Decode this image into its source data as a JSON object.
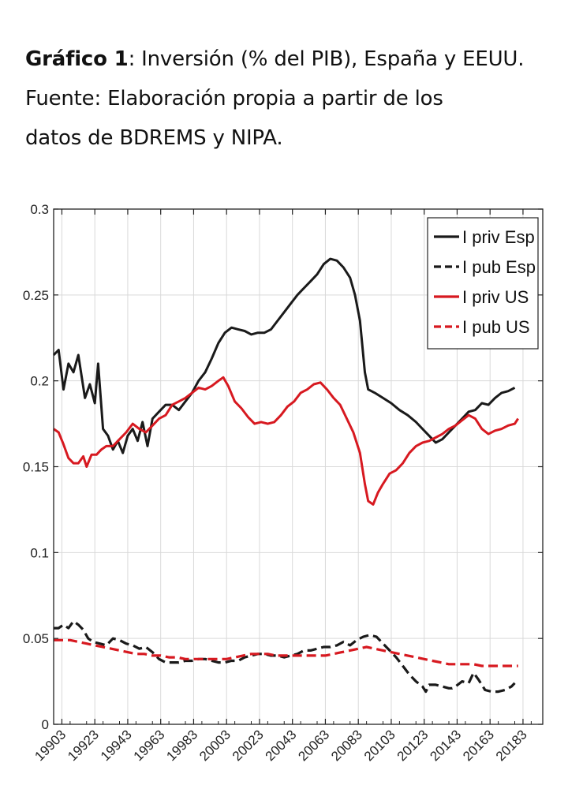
{
  "caption": {
    "label": "Gráfico 1",
    "line1_rest": ": Inversión (% del PIB), España y EEUU.",
    "line2": "Fuente: Elaboración propia a partir de los",
    "line3": "datos de BDREMS y NIPA."
  },
  "chart_data": {
    "type": "line",
    "ylim": [
      0,
      0.3
    ],
    "yticks": [
      "0",
      "0.05",
      "0.1",
      "0.15",
      "0.2",
      "0.25",
      "0.3"
    ],
    "x_tick_labels": [
      "19903",
      "19923",
      "19943",
      "19963",
      "19983",
      "20003",
      "20023",
      "20043",
      "20063",
      "20083",
      "20103",
      "20123",
      "20143",
      "20163",
      "20183"
    ],
    "x_tick_years": [
      1990.5,
      1992.5,
      1994.5,
      1996.5,
      1998.5,
      2000.5,
      2002.5,
      2004.5,
      2006.5,
      2008.5,
      2010.5,
      2012.5,
      2014.5,
      2016.5,
      2018.5
    ],
    "xlim": [
      1990,
      2019.7
    ],
    "grid": true,
    "legend_position": "top-right",
    "series": [
      {
        "name": "I priv Esp",
        "color": "#1a1a1a",
        "dash": "solid",
        "points": [
          [
            1990.0,
            0.215
          ],
          [
            1990.3,
            0.218
          ],
          [
            1990.6,
            0.195
          ],
          [
            1990.9,
            0.21
          ],
          [
            1991.2,
            0.205
          ],
          [
            1991.5,
            0.215
          ],
          [
            1991.9,
            0.19
          ],
          [
            1992.2,
            0.198
          ],
          [
            1992.5,
            0.187
          ],
          [
            1992.7,
            0.21
          ],
          [
            1993.0,
            0.172
          ],
          [
            1993.3,
            0.168
          ],
          [
            1993.6,
            0.16
          ],
          [
            1993.9,
            0.165
          ],
          [
            1994.2,
            0.158
          ],
          [
            1994.5,
            0.168
          ],
          [
            1994.8,
            0.172
          ],
          [
            1995.1,
            0.165
          ],
          [
            1995.4,
            0.176
          ],
          [
            1995.7,
            0.162
          ],
          [
            1996.0,
            0.178
          ],
          [
            1996.4,
            0.182
          ],
          [
            1996.8,
            0.186
          ],
          [
            1997.2,
            0.186
          ],
          [
            1997.6,
            0.183
          ],
          [
            1998.0,
            0.188
          ],
          [
            1998.4,
            0.193
          ],
          [
            1998.8,
            0.2
          ],
          [
            1999.2,
            0.205
          ],
          [
            1999.6,
            0.213
          ],
          [
            2000.0,
            0.222
          ],
          [
            2000.4,
            0.228
          ],
          [
            2000.8,
            0.231
          ],
          [
            2001.2,
            0.23
          ],
          [
            2001.6,
            0.229
          ],
          [
            2002.0,
            0.227
          ],
          [
            2002.4,
            0.228
          ],
          [
            2002.8,
            0.228
          ],
          [
            2003.2,
            0.23
          ],
          [
            2003.6,
            0.235
          ],
          [
            2004.0,
            0.24
          ],
          [
            2004.4,
            0.245
          ],
          [
            2004.8,
            0.25
          ],
          [
            2005.2,
            0.254
          ],
          [
            2005.6,
            0.258
          ],
          [
            2006.0,
            0.262
          ],
          [
            2006.4,
            0.268
          ],
          [
            2006.8,
            0.271
          ],
          [
            2007.2,
            0.27
          ],
          [
            2007.6,
            0.266
          ],
          [
            2008.0,
            0.26
          ],
          [
            2008.3,
            0.25
          ],
          [
            2008.6,
            0.235
          ],
          [
            2008.9,
            0.205
          ],
          [
            2009.1,
            0.195
          ],
          [
            2009.5,
            0.193
          ],
          [
            2010.0,
            0.19
          ],
          [
            2010.5,
            0.187
          ],
          [
            2011.0,
            0.183
          ],
          [
            2011.5,
            0.18
          ],
          [
            2012.0,
            0.176
          ],
          [
            2012.4,
            0.172
          ],
          [
            2012.8,
            0.168
          ],
          [
            2013.2,
            0.164
          ],
          [
            2013.6,
            0.166
          ],
          [
            2014.0,
            0.17
          ],
          [
            2014.4,
            0.174
          ],
          [
            2014.8,
            0.178
          ],
          [
            2015.2,
            0.182
          ],
          [
            2015.6,
            0.183
          ],
          [
            2016.0,
            0.187
          ],
          [
            2016.4,
            0.186
          ],
          [
            2016.8,
            0.19
          ],
          [
            2017.2,
            0.193
          ],
          [
            2017.6,
            0.194
          ],
          [
            2018.0,
            0.196
          ]
        ]
      },
      {
        "name": "I pub Esp",
        "color": "#1a1a1a",
        "dash": "dashed",
        "points": [
          [
            1990.0,
            0.056
          ],
          [
            1990.3,
            0.056
          ],
          [
            1990.6,
            0.058
          ],
          [
            1990.9,
            0.056
          ],
          [
            1991.2,
            0.06
          ],
          [
            1991.5,
            0.058
          ],
          [
            1991.8,
            0.055
          ],
          [
            1992.1,
            0.05
          ],
          [
            1992.4,
            0.048
          ],
          [
            1992.8,
            0.047
          ],
          [
            1993.2,
            0.046
          ],
          [
            1993.6,
            0.05
          ],
          [
            1994.0,
            0.049
          ],
          [
            1994.4,
            0.047
          ],
          [
            1994.8,
            0.046
          ],
          [
            1995.2,
            0.044
          ],
          [
            1995.6,
            0.045
          ],
          [
            1996.0,
            0.042
          ],
          [
            1996.4,
            0.038
          ],
          [
            1996.8,
            0.036
          ],
          [
            1997.2,
            0.036
          ],
          [
            1997.6,
            0.036
          ],
          [
            1998.0,
            0.037
          ],
          [
            1998.4,
            0.037
          ],
          [
            1998.8,
            0.038
          ],
          [
            1999.2,
            0.038
          ],
          [
            1999.6,
            0.037
          ],
          [
            2000.0,
            0.036
          ],
          [
            2000.4,
            0.036
          ],
          [
            2000.8,
            0.037
          ],
          [
            2001.2,
            0.037
          ],
          [
            2001.6,
            0.039
          ],
          [
            2002.0,
            0.04
          ],
          [
            2002.4,
            0.041
          ],
          [
            2002.8,
            0.041
          ],
          [
            2003.2,
            0.04
          ],
          [
            2003.6,
            0.04
          ],
          [
            2004.0,
            0.039
          ],
          [
            2004.4,
            0.04
          ],
          [
            2004.8,
            0.041
          ],
          [
            2005.2,
            0.043
          ],
          [
            2005.6,
            0.043
          ],
          [
            2006.0,
            0.044
          ],
          [
            2006.4,
            0.045
          ],
          [
            2006.8,
            0.045
          ],
          [
            2007.2,
            0.046
          ],
          [
            2007.6,
            0.048
          ],
          [
            2008.0,
            0.046
          ],
          [
            2008.4,
            0.049
          ],
          [
            2008.8,
            0.051
          ],
          [
            2009.2,
            0.052
          ],
          [
            2009.6,
            0.051
          ],
          [
            2010.0,
            0.047
          ],
          [
            2010.4,
            0.043
          ],
          [
            2010.8,
            0.039
          ],
          [
            2011.2,
            0.034
          ],
          [
            2011.6,
            0.029
          ],
          [
            2012.0,
            0.025
          ],
          [
            2012.4,
            0.022
          ],
          [
            2012.6,
            0.019
          ],
          [
            2012.8,
            0.023
          ],
          [
            2013.2,
            0.023
          ],
          [
            2013.6,
            0.022
          ],
          [
            2014.0,
            0.021
          ],
          [
            2014.2,
            0.021
          ],
          [
            2014.4,
            0.022
          ],
          [
            2014.8,
            0.025
          ],
          [
            2015.2,
            0.024
          ],
          [
            2015.5,
            0.03
          ],
          [
            2015.8,
            0.026
          ],
          [
            2016.2,
            0.02
          ],
          [
            2016.6,
            0.019
          ],
          [
            2017.0,
            0.019
          ],
          [
            2017.4,
            0.02
          ],
          [
            2017.8,
            0.022
          ],
          [
            2018.0,
            0.024
          ]
        ]
      },
      {
        "name": "I priv US",
        "color": "#d71920",
        "dash": "solid",
        "points": [
          [
            1990.0,
            0.172
          ],
          [
            1990.3,
            0.17
          ],
          [
            1990.6,
            0.163
          ],
          [
            1990.9,
            0.155
          ],
          [
            1991.2,
            0.152
          ],
          [
            1991.5,
            0.152
          ],
          [
            1991.8,
            0.156
          ],
          [
            1992.0,
            0.15
          ],
          [
            1992.3,
            0.157
          ],
          [
            1992.6,
            0.157
          ],
          [
            1992.9,
            0.16
          ],
          [
            1993.2,
            0.162
          ],
          [
            1993.6,
            0.162
          ],
          [
            1994.0,
            0.166
          ],
          [
            1994.4,
            0.17
          ],
          [
            1994.8,
            0.175
          ],
          [
            1995.2,
            0.172
          ],
          [
            1995.6,
            0.17
          ],
          [
            1996.0,
            0.174
          ],
          [
            1996.4,
            0.178
          ],
          [
            1996.8,
            0.18
          ],
          [
            1997.2,
            0.186
          ],
          [
            1997.6,
            0.188
          ],
          [
            1998.0,
            0.19
          ],
          [
            1998.4,
            0.193
          ],
          [
            1998.8,
            0.196
          ],
          [
            1999.2,
            0.195
          ],
          [
            1999.6,
            0.197
          ],
          [
            2000.0,
            0.2
          ],
          [
            2000.3,
            0.202
          ],
          [
            2000.6,
            0.197
          ],
          [
            2001.0,
            0.188
          ],
          [
            2001.4,
            0.184
          ],
          [
            2001.8,
            0.179
          ],
          [
            2002.2,
            0.175
          ],
          [
            2002.6,
            0.176
          ],
          [
            2003.0,
            0.175
          ],
          [
            2003.4,
            0.176
          ],
          [
            2003.8,
            0.18
          ],
          [
            2004.2,
            0.185
          ],
          [
            2004.6,
            0.188
          ],
          [
            2005.0,
            0.193
          ],
          [
            2005.4,
            0.195
          ],
          [
            2005.8,
            0.198
          ],
          [
            2006.2,
            0.199
          ],
          [
            2006.6,
            0.195
          ],
          [
            2007.0,
            0.19
          ],
          [
            2007.4,
            0.186
          ],
          [
            2007.8,
            0.178
          ],
          [
            2008.2,
            0.17
          ],
          [
            2008.6,
            0.158
          ],
          [
            2008.9,
            0.14
          ],
          [
            2009.1,
            0.13
          ],
          [
            2009.4,
            0.128
          ],
          [
            2009.7,
            0.135
          ],
          [
            2010.0,
            0.14
          ],
          [
            2010.4,
            0.146
          ],
          [
            2010.8,
            0.148
          ],
          [
            2011.2,
            0.152
          ],
          [
            2011.6,
            0.158
          ],
          [
            2012.0,
            0.162
          ],
          [
            2012.4,
            0.164
          ],
          [
            2012.8,
            0.165
          ],
          [
            2013.2,
            0.167
          ],
          [
            2013.6,
            0.169
          ],
          [
            2014.0,
            0.172
          ],
          [
            2014.4,
            0.174
          ],
          [
            2014.8,
            0.177
          ],
          [
            2015.2,
            0.18
          ],
          [
            2015.6,
            0.178
          ],
          [
            2016.0,
            0.172
          ],
          [
            2016.4,
            0.169
          ],
          [
            2016.8,
            0.171
          ],
          [
            2017.2,
            0.172
          ],
          [
            2017.6,
            0.174
          ],
          [
            2018.0,
            0.175
          ],
          [
            2018.2,
            0.178
          ]
        ]
      },
      {
        "name": "I pub US",
        "color": "#d71920",
        "dash": "dashed",
        "points": [
          [
            1990.0,
            0.049
          ],
          [
            1990.5,
            0.049
          ],
          [
            1991.0,
            0.049
          ],
          [
            1991.5,
            0.048
          ],
          [
            1992.0,
            0.047
          ],
          [
            1992.5,
            0.046
          ],
          [
            1993.0,
            0.045
          ],
          [
            1993.5,
            0.044
          ],
          [
            1994.0,
            0.043
          ],
          [
            1994.5,
            0.042
          ],
          [
            1995.0,
            0.041
          ],
          [
            1995.5,
            0.041
          ],
          [
            1996.0,
            0.04
          ],
          [
            1996.5,
            0.04
          ],
          [
            1997.0,
            0.039
          ],
          [
            1997.5,
            0.039
          ],
          [
            1998.0,
            0.038
          ],
          [
            1998.5,
            0.038
          ],
          [
            1999.0,
            0.038
          ],
          [
            1999.5,
            0.038
          ],
          [
            2000.0,
            0.038
          ],
          [
            2000.5,
            0.038
          ],
          [
            2001.0,
            0.039
          ],
          [
            2001.5,
            0.04
          ],
          [
            2002.0,
            0.041
          ],
          [
            2002.5,
            0.041
          ],
          [
            2003.0,
            0.041
          ],
          [
            2003.5,
            0.04
          ],
          [
            2004.0,
            0.04
          ],
          [
            2004.5,
            0.04
          ],
          [
            2005.0,
            0.04
          ],
          [
            2005.5,
            0.04
          ],
          [
            2006.0,
            0.04
          ],
          [
            2006.5,
            0.04
          ],
          [
            2007.0,
            0.041
          ],
          [
            2007.5,
            0.042
          ],
          [
            2008.0,
            0.043
          ],
          [
            2008.5,
            0.044
          ],
          [
            2009.0,
            0.045
          ],
          [
            2009.5,
            0.044
          ],
          [
            2010.0,
            0.043
          ],
          [
            2010.5,
            0.042
          ],
          [
            2011.0,
            0.041
          ],
          [
            2011.5,
            0.04
          ],
          [
            2012.0,
            0.039
          ],
          [
            2012.5,
            0.038
          ],
          [
            2013.0,
            0.037
          ],
          [
            2013.5,
            0.036
          ],
          [
            2014.0,
            0.035
          ],
          [
            2014.5,
            0.035
          ],
          [
            2015.0,
            0.035
          ],
          [
            2015.5,
            0.035
          ],
          [
            2016.0,
            0.034
          ],
          [
            2016.5,
            0.034
          ],
          [
            2017.0,
            0.034
          ],
          [
            2017.5,
            0.034
          ],
          [
            2018.0,
            0.034
          ],
          [
            2018.2,
            0.034
          ]
        ]
      }
    ]
  }
}
